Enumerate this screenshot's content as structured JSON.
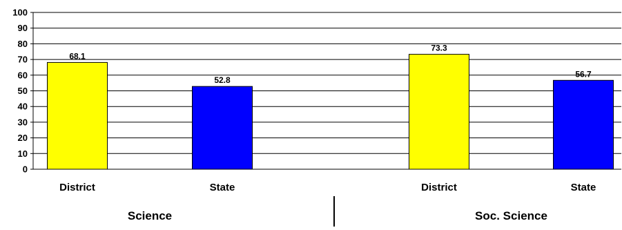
{
  "chart_data": {
    "type": "bar",
    "ylim": [
      0,
      100
    ],
    "yticks": [
      0,
      10,
      20,
      30,
      40,
      50,
      60,
      70,
      80,
      90,
      100
    ],
    "grid": true,
    "groups": [
      {
        "name": "Science",
        "bars": [
          {
            "category": "District",
            "value": 68.1,
            "label": "68.1",
            "color": "#ffff00"
          },
          {
            "category": "State",
            "value": 52.8,
            "label": "52.8",
            "color": "#0000ff"
          }
        ]
      },
      {
        "name": "Soc. Science",
        "bars": [
          {
            "category": "District",
            "value": 73.3,
            "label": "73.3",
            "color": "#ffff00"
          },
          {
            "category": "State",
            "value": 56.7,
            "label": "56.7",
            "color": "#0000ff"
          }
        ]
      }
    ]
  }
}
